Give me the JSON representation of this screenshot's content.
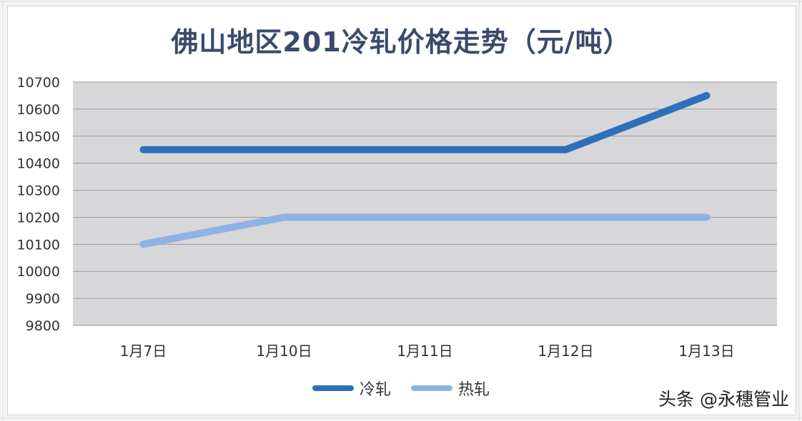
{
  "chart_data": {
    "type": "line",
    "title": "佛山地区201冷轧价格走势（元/吨）",
    "categories": [
      "1月7日",
      "1月10日",
      "1月11日",
      "1月12日",
      "1月13日"
    ],
    "series": [
      {
        "name": "冷轧",
        "values": [
          10450,
          10450,
          10450,
          10450,
          10650
        ],
        "color": "#2e6fba"
      },
      {
        "name": "热轧",
        "values": [
          10100,
          10200,
          10200,
          10200,
          10200
        ],
        "color": "#8fb2e6"
      }
    ],
    "ylim": [
      9800,
      10700
    ],
    "yticks": [
      "9800",
      "9900",
      "10000",
      "10100",
      "10200",
      "10300",
      "10400",
      "10500",
      "10600",
      "10700"
    ],
    "grid": true,
    "legend_position": "bottom"
  },
  "colors": {
    "plot_background": "#d7d6d9",
    "gridline": "#9a9a9a",
    "title": "#3b4a6b"
  },
  "watermark": "头条 @永穗管业"
}
